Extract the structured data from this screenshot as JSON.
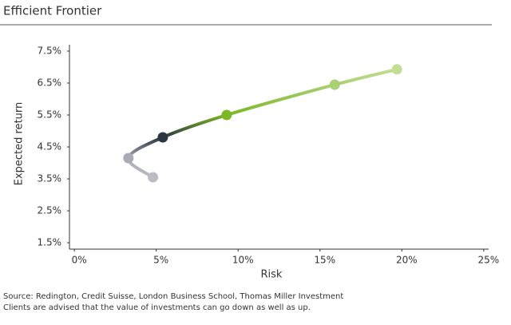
{
  "chart_data": {
    "type": "line",
    "title": "Efficient Frontier",
    "x_label": "Risk",
    "y_label": "Expected return",
    "footnotes": [
      "Source: Redington, Credit Suisse, London Business School, Thomas Miller Investment",
      "Clients are advised that the value of investments can go down as well as up."
    ],
    "series": [
      {
        "name": null,
        "x": [
          4.8,
          3.3,
          5.4,
          9.3,
          15.9,
          19.7
        ],
        "values": [
          3.55,
          4.15,
          4.8,
          5.5,
          6.45,
          6.93
        ],
        "point_colors": [
          "#bbbdc4",
          "#a9acb4",
          "#2b3640",
          "#7cb726",
          "#a9d072",
          "#c3de92"
        ]
      }
    ],
    "xlim": [
      -0.3,
      25.3
    ],
    "ylim": [
      1.3,
      7.7
    ],
    "xticks": [
      {
        "value": 0,
        "label": "0%"
      },
      {
        "value": 5,
        "label": "5%"
      },
      {
        "value": 10,
        "label": "10%"
      },
      {
        "value": 15,
        "label": "15%"
      },
      {
        "value": 20,
        "label": "20%"
      },
      {
        "value": 25,
        "label": "25%"
      }
    ],
    "yticks": [
      {
        "value": 1.5,
        "label": "1.5%"
      },
      {
        "value": 2.5,
        "label": "2.5%"
      },
      {
        "value": 3.5,
        "label": "3.5%"
      },
      {
        "value": 4.5,
        "label": "4.5%"
      },
      {
        "value": 5.5,
        "label": "5.5%"
      },
      {
        "value": 6.5,
        "label": "6.5%"
      },
      {
        "value": 7.5,
        "label": "7.5%"
      }
    ],
    "grid": false
  }
}
